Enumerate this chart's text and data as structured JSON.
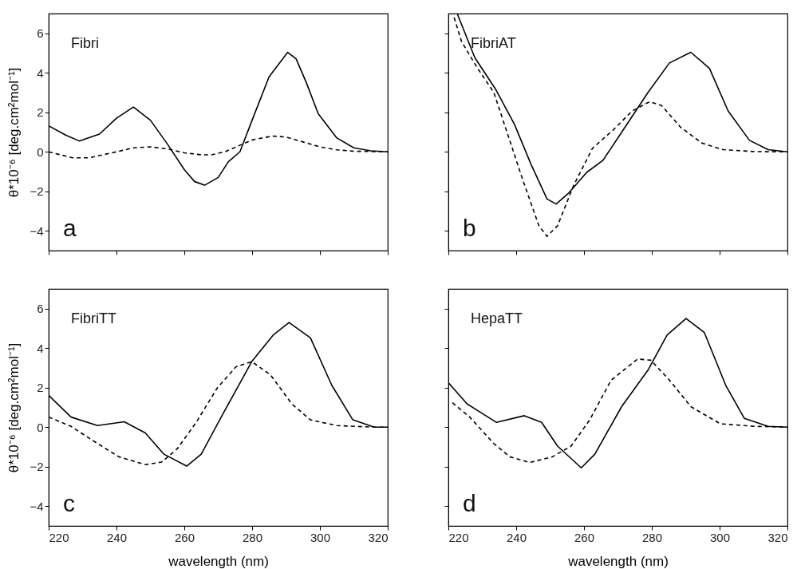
{
  "chart_data": [
    {
      "type": "line",
      "xlim": [
        220,
        320
      ],
      "xticks": [
        220,
        240,
        260,
        280,
        300,
        320
      ],
      "ylim": [
        -5,
        7
      ],
      "yticks": [
        -4,
        -2,
        0,
        2,
        4,
        6
      ],
      "ylabel": "θ*10⁻⁶ [deg.cm²mol⁻¹]",
      "tick_labels": "y",
      "annotations": [
        "Fibri",
        "a"
      ],
      "series": [
        {
          "color": "#000000",
          "line_style": "solid",
          "x": [
            220,
            225,
            229,
            235,
            240,
            245,
            250,
            255,
            260,
            263,
            266,
            270,
            273,
            276.4,
            280,
            285,
            290.5,
            293,
            296,
            299.5,
            305,
            310,
            315,
            320
          ],
          "values": [
            1.32,
            0.85,
            0.55,
            0.9,
            1.7,
            2.27,
            1.6,
            0.4,
            -0.9,
            -1.5,
            -1.69,
            -1.3,
            -0.5,
            0,
            1.6,
            3.8,
            5.04,
            4.7,
            3.5,
            1.93,
            0.7,
            0.2,
            0.05,
            0
          ]
        },
        {
          "color": "#000000",
          "line_style": "dashed",
          "x": [
            220,
            227,
            232,
            240,
            245,
            250,
            255,
            260,
            265,
            268,
            272,
            276,
            280,
            286,
            290,
            295,
            300,
            305,
            310,
            320
          ],
          "values": [
            0,
            -0.3,
            -0.3,
            0,
            0.2,
            0.25,
            0.15,
            -0.05,
            -0.15,
            -0.15,
            0,
            0.3,
            0.6,
            0.8,
            0.75,
            0.5,
            0.25,
            0.1,
            0.03,
            0
          ]
        }
      ]
    },
    {
      "type": "line",
      "xlim": [
        220,
        320
      ],
      "xticks": [
        220,
        240,
        260,
        280,
        300,
        320
      ],
      "ylim": [
        -5,
        7
      ],
      "yticks": [
        -4,
        -2,
        0,
        2,
        4,
        6
      ],
      "tick_labels": false,
      "annotations": [
        "FibriAT",
        "b"
      ],
      "series": [
        {
          "color": "#000000",
          "line_style": "solid",
          "x": [
            222.6,
            227.8,
            234,
            239.5,
            244.4,
            249.1,
            251.8,
            255.3,
            260.8,
            265.6,
            271.1,
            278.9,
            285.2,
            291.5,
            297,
            302.5,
            308.8,
            314.3,
            320
          ],
          "values": [
            7,
            4.77,
            3.15,
            1.39,
            -0.64,
            -2.39,
            -2.64,
            -2.12,
            -1.04,
            -0.43,
            0.99,
            3.01,
            4.5,
            5.04,
            4.23,
            2.07,
            0.58,
            0.11,
            0
          ]
        },
        {
          "color": "#000000",
          "line_style": "dashed",
          "x": [
            221.7,
            223.9,
            228.6,
            233.4,
            237.3,
            242,
            246.7,
            249.1,
            252.2,
            256.9,
            262.5,
            268.7,
            274.2,
            279.4,
            282.9,
            288.4,
            294.7,
            301,
            310.4,
            320
          ],
          "values": [
            6.8,
            5.58,
            4.23,
            3.01,
            0.99,
            -1.45,
            -3.74,
            -4.28,
            -3.74,
            -1.72,
            0.18,
            1.12,
            2.07,
            2.54,
            2.34,
            1.26,
            0.45,
            0.11,
            0.01,
            0
          ]
        }
      ]
    },
    {
      "type": "line",
      "xlim": [
        220,
        320
      ],
      "xticks": [
        220,
        240,
        260,
        280,
        300,
        320
      ],
      "ylim": [
        -5,
        7
      ],
      "yticks": [
        -4,
        -2,
        0,
        2,
        4,
        6
      ],
      "xlabel": "wavelength (nm)",
      "ylabel": "θ*10⁻⁶ [deg.cm²mol⁻¹]",
      "annotations": [
        "FibriTT",
        "c"
      ],
      "series": [
        {
          "color": "#000000",
          "line_style": "solid",
          "x": [
            220,
            226.6,
            234.4,
            242.3,
            248.5,
            254,
            260.7,
            265,
            271.3,
            279.9,
            286.2,
            290.9,
            297.2,
            303.5,
            309.7,
            316,
            320
          ],
          "values": [
            1.61,
            0.51,
            0.08,
            0.27,
            -0.29,
            -1.37,
            -1.97,
            -1.37,
            0.64,
            3.32,
            4.66,
            5.3,
            4.52,
            2.12,
            0.37,
            0,
            0
          ]
        },
        {
          "color": "#000000",
          "line_style": "dashed",
          "x": [
            220,
            226.6,
            234.4,
            240.7,
            248.5,
            253.3,
            257.9,
            263.5,
            269.7,
            275.2,
            279.9,
            285.4,
            291.7,
            297.2,
            305,
            316,
            320
          ],
          "values": [
            0.51,
            0.04,
            -0.83,
            -1.5,
            -1.9,
            -1.77,
            -1.1,
            0.24,
            1.98,
            3.05,
            3.32,
            2.65,
            1.18,
            0.37,
            0.08,
            0,
            0
          ]
        }
      ]
    },
    {
      "type": "line",
      "xlim": [
        220,
        320
      ],
      "xticks": [
        220,
        240,
        260,
        280,
        300,
        320
      ],
      "ylim": [
        -5,
        7
      ],
      "yticks": [
        -4,
        -2,
        0,
        2,
        4,
        6
      ],
      "xlabel": "wavelength (nm)",
      "tick_labels": "x",
      "annotations": [
        "HepaTT",
        "d"
      ],
      "series": [
        {
          "color": "#000000",
          "line_style": "solid",
          "x": [
            220,
            225.5,
            234.2,
            242.4,
            247.5,
            252.2,
            259.2,
            263.2,
            271.1,
            279,
            284.5,
            290.1,
            295.5,
            301.8,
            307.3,
            314.3,
            320
          ],
          "values": [
            2.25,
            1.18,
            0.24,
            0.58,
            0.24,
            -0.96,
            -2.06,
            -1.37,
            1.04,
            2.92,
            4.66,
            5.5,
            4.79,
            2.12,
            0.44,
            0.04,
            0
          ]
        },
        {
          "color": "#000000",
          "line_style": "dashed",
          "x": [
            221.2,
            226.3,
            233.4,
            238.1,
            244,
            250.7,
            256.2,
            261.7,
            268,
            275.8,
            279.7,
            285.2,
            291.5,
            300.2,
            310.4,
            320
          ],
          "values": [
            1.24,
            0.51,
            -0.83,
            -1.5,
            -1.79,
            -1.5,
            -0.96,
            0.37,
            2.38,
            3.45,
            3.39,
            2.38,
            1.04,
            0.17,
            0.04,
            0
          ]
        }
      ]
    }
  ]
}
